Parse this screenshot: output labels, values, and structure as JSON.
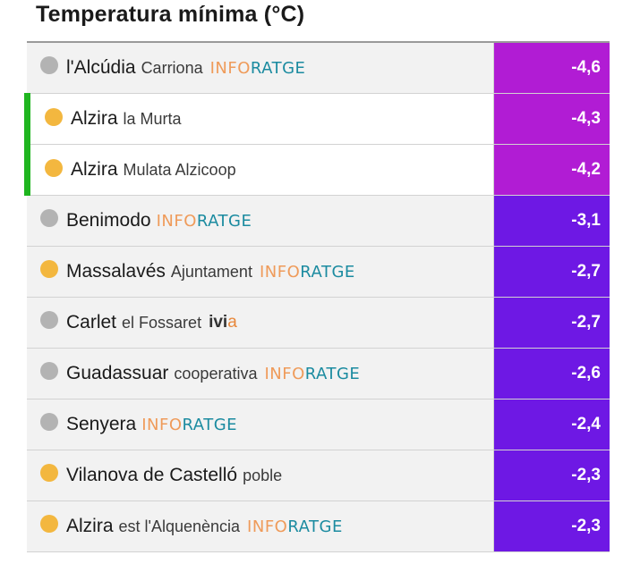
{
  "title": "Temperatura mínima (°C)",
  "brands": {
    "inforatge_a": "INFO",
    "inforatge_b": "RATGE",
    "ivia_a": "ivi",
    "ivia_b": "a"
  },
  "rows": [
    {
      "place": "l'Alcúdia",
      "sub": "Carriona",
      "brand": "inforatge",
      "value": "-4,6",
      "dot": "grey",
      "color": "#b11cd4",
      "highlight": false
    },
    {
      "place": "Alzira",
      "sub": "la Murta",
      "brand": "",
      "value": "-4,3",
      "dot": "yellow",
      "color": "#b11cd4",
      "highlight": true
    },
    {
      "place": "Alzira",
      "sub": "Mulata Alzicoop",
      "brand": "",
      "value": "-4,2",
      "dot": "yellow",
      "color": "#b11cd4",
      "highlight": true
    },
    {
      "place": "Benimodo",
      "sub": "",
      "brand": "inforatge",
      "value": "-3,1",
      "dot": "grey",
      "color": "#6e18e4",
      "highlight": false
    },
    {
      "place": "Massalavés",
      "sub": "Ajuntament",
      "brand": "inforatge",
      "value": "-2,7",
      "dot": "yellow",
      "color": "#6e18e4",
      "highlight": false
    },
    {
      "place": "Carlet",
      "sub": "el Fossaret",
      "brand": "ivia",
      "value": "-2,7",
      "dot": "grey",
      "color": "#6e18e4",
      "highlight": false
    },
    {
      "place": "Guadassuar",
      "sub": "cooperativa",
      "brand": "inforatge",
      "value": "-2,6",
      "dot": "grey",
      "color": "#6e18e4",
      "highlight": false
    },
    {
      "place": "Senyera",
      "sub": "",
      "brand": "inforatge",
      "value": "-2,4",
      "dot": "grey",
      "color": "#6e18e4",
      "highlight": false
    },
    {
      "place": "Vilanova de Castelló",
      "sub": "poble",
      "brand": "",
      "value": "-2,3",
      "dot": "yellow",
      "color": "#6e18e4",
      "highlight": false
    },
    {
      "place": "Alzira",
      "sub": "est l'Alquenència",
      "brand": "inforatge",
      "value": "-2,3",
      "dot": "yellow",
      "color": "#6e18e4",
      "highlight": false
    }
  ]
}
